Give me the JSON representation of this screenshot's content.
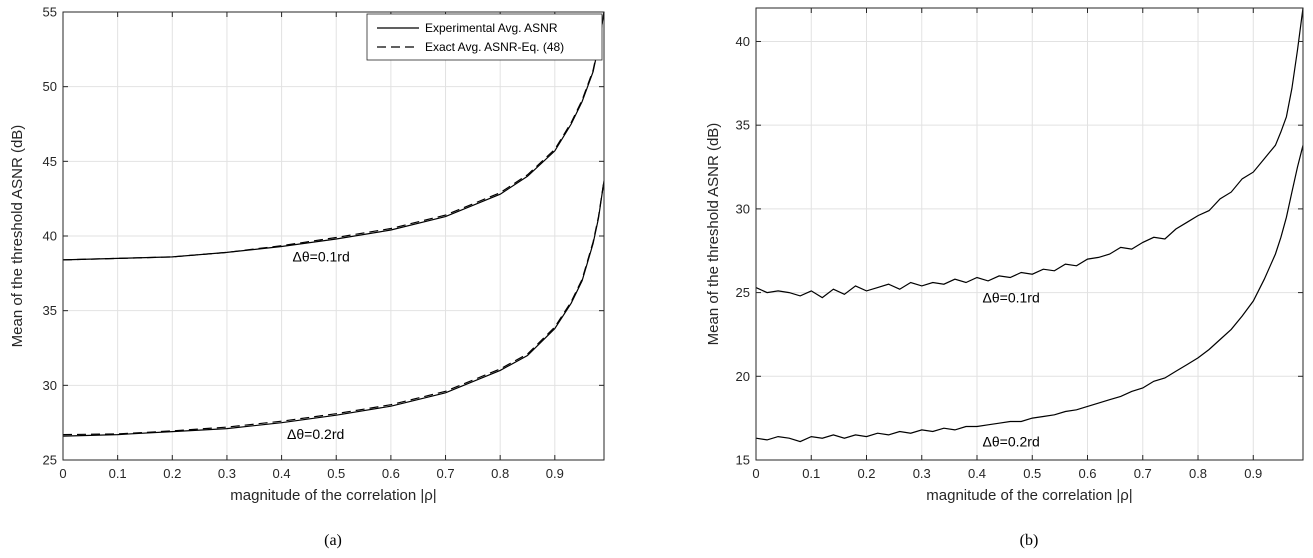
{
  "chart_data": [
    {
      "type": "line",
      "caption": "(a)",
      "xlabel": "magnitude of the correlation |ρ|",
      "ylabel": "Mean of the threshold ASNR (dB)",
      "xlim": [
        0,
        0.99
      ],
      "ylim": [
        25,
        55
      ],
      "xticks": [
        0,
        0.1,
        0.2,
        0.3,
        0.4,
        0.5,
        0.6,
        0.7,
        0.8,
        0.9
      ],
      "yticks": [
        25,
        30,
        35,
        40,
        45,
        50,
        55
      ],
      "grid": true,
      "legend": {
        "position": "top-right",
        "entries": [
          "Experimental Avg. ASNR",
          "Exact Avg. ASNR-Eq. (48)"
        ]
      },
      "annotations": [
        {
          "text": "Δθ=0.1rd",
          "x": 0.42,
          "y": 38.3
        },
        {
          "text": "Δθ=0.2rd",
          "x": 0.41,
          "y": 26.4
        }
      ],
      "series": [
        {
          "name": "Experimental Avg. ASNR",
          "style": "solid",
          "x": [
            0,
            0.1,
            0.2,
            0.3,
            0.4,
            0.5,
            0.6,
            0.7,
            0.8,
            0.85,
            0.9,
            0.93,
            0.95,
            0.97,
            0.98,
            0.99
          ],
          "y": [
            38.4,
            38.5,
            38.6,
            38.9,
            39.3,
            39.8,
            40.4,
            41.3,
            42.8,
            44.0,
            45.7,
            47.5,
            49.0,
            51.0,
            52.7,
            55.0
          ]
        },
        {
          "name": "Exact Avg. ASNR-Eq. (48)",
          "style": "dashed",
          "x": [
            0,
            0.1,
            0.2,
            0.3,
            0.4,
            0.5,
            0.6,
            0.7,
            0.8,
            0.85,
            0.9,
            0.93,
            0.95,
            0.97,
            0.98,
            0.99
          ],
          "y": [
            38.4,
            38.5,
            38.6,
            38.9,
            39.35,
            39.9,
            40.5,
            41.4,
            42.9,
            44.1,
            45.8,
            47.6,
            49.1,
            51.1,
            52.8,
            55.0
          ]
        },
        {
          "name": "Experimental Avg. ASNR",
          "style": "solid",
          "x": [
            0,
            0.1,
            0.2,
            0.3,
            0.4,
            0.5,
            0.6,
            0.7,
            0.8,
            0.85,
            0.9,
            0.93,
            0.95,
            0.97,
            0.98,
            0.99
          ],
          "y": [
            26.6,
            26.7,
            26.9,
            27.1,
            27.5,
            28.0,
            28.6,
            29.5,
            31.0,
            32.0,
            33.8,
            35.5,
            37.0,
            39.5,
            41.2,
            43.7
          ]
        },
        {
          "name": "Exact Avg. ASNR-Eq. (48)",
          "style": "dashed",
          "x": [
            0,
            0.1,
            0.2,
            0.3,
            0.4,
            0.5,
            0.6,
            0.7,
            0.8,
            0.85,
            0.9,
            0.93,
            0.95,
            0.97,
            0.98,
            0.99
          ],
          "y": [
            26.7,
            26.75,
            26.95,
            27.2,
            27.6,
            28.1,
            28.7,
            29.6,
            31.1,
            32.1,
            33.9,
            35.6,
            37.1,
            39.6,
            41.3,
            43.7
          ]
        }
      ]
    },
    {
      "type": "line",
      "caption": "(b)",
      "xlabel": "magnitude of the correlation |ρ|",
      "ylabel": "Mean of the threshold ASNR (dB)",
      "xlim": [
        0,
        0.99
      ],
      "ylim": [
        15,
        42
      ],
      "xticks": [
        0,
        0.1,
        0.2,
        0.3,
        0.4,
        0.5,
        0.6,
        0.7,
        0.8,
        0.9
      ],
      "yticks": [
        15,
        20,
        25,
        30,
        35,
        40
      ],
      "grid": true,
      "annotations": [
        {
          "text": "Δθ=0.1rd",
          "x": 0.41,
          "y": 24.4
        },
        {
          "text": "Δθ=0.2rd",
          "x": 0.41,
          "y": 15.8
        }
      ],
      "series": [
        {
          "style": "solid",
          "x": [
            0,
            0.02,
            0.04,
            0.06,
            0.08,
            0.1,
            0.12,
            0.14,
            0.16,
            0.18,
            0.2,
            0.22,
            0.24,
            0.26,
            0.28,
            0.3,
            0.32,
            0.34,
            0.36,
            0.38,
            0.4,
            0.42,
            0.44,
            0.46,
            0.48,
            0.5,
            0.52,
            0.54,
            0.56,
            0.58,
            0.6,
            0.62,
            0.64,
            0.66,
            0.68,
            0.7,
            0.72,
            0.74,
            0.76,
            0.78,
            0.8,
            0.82,
            0.84,
            0.86,
            0.88,
            0.9,
            0.92,
            0.94,
            0.95,
            0.96,
            0.97,
            0.98,
            0.99
          ],
          "y": [
            25.3,
            25.0,
            25.1,
            25.0,
            24.8,
            25.1,
            24.7,
            25.2,
            24.9,
            25.4,
            25.1,
            25.3,
            25.5,
            25.2,
            25.6,
            25.4,
            25.6,
            25.5,
            25.8,
            25.6,
            25.9,
            25.7,
            26.0,
            25.9,
            26.2,
            26.1,
            26.4,
            26.3,
            26.7,
            26.6,
            27.0,
            27.1,
            27.3,
            27.7,
            27.6,
            28.0,
            28.3,
            28.2,
            28.8,
            29.2,
            29.6,
            29.9,
            30.6,
            31.0,
            31.8,
            32.2,
            33.0,
            33.8,
            34.6,
            35.5,
            37.2,
            39.5,
            42.0
          ]
        },
        {
          "style": "solid",
          "x": [
            0,
            0.02,
            0.04,
            0.06,
            0.08,
            0.1,
            0.12,
            0.14,
            0.16,
            0.18,
            0.2,
            0.22,
            0.24,
            0.26,
            0.28,
            0.3,
            0.32,
            0.34,
            0.36,
            0.38,
            0.4,
            0.42,
            0.44,
            0.46,
            0.48,
            0.5,
            0.52,
            0.54,
            0.56,
            0.58,
            0.6,
            0.62,
            0.64,
            0.66,
            0.68,
            0.7,
            0.72,
            0.74,
            0.76,
            0.78,
            0.8,
            0.82,
            0.84,
            0.86,
            0.88,
            0.9,
            0.92,
            0.94,
            0.95,
            0.96,
            0.97,
            0.98,
            0.99
          ],
          "y": [
            16.3,
            16.2,
            16.4,
            16.3,
            16.1,
            16.4,
            16.3,
            16.5,
            16.3,
            16.5,
            16.4,
            16.6,
            16.5,
            16.7,
            16.6,
            16.8,
            16.7,
            16.9,
            16.8,
            17.0,
            17.0,
            17.1,
            17.2,
            17.3,
            17.3,
            17.5,
            17.6,
            17.7,
            17.9,
            18.0,
            18.2,
            18.4,
            18.6,
            18.8,
            19.1,
            19.3,
            19.7,
            19.9,
            20.3,
            20.7,
            21.1,
            21.6,
            22.2,
            22.8,
            23.6,
            24.5,
            25.8,
            27.3,
            28.3,
            29.5,
            31.0,
            32.5,
            33.8
          ]
        }
      ]
    }
  ]
}
